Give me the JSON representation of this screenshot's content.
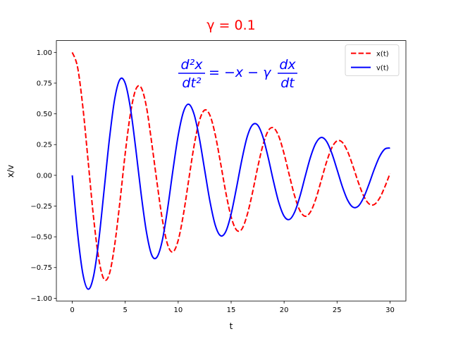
{
  "chart_data": {
    "type": "line",
    "title": "γ = 0.1",
    "title_color": "#ff0000",
    "annotation": {
      "fraction1": {
        "num": "d²x",
        "den": "dt²"
      },
      "middle": "= −x − γ",
      "fraction2": {
        "num": "dx",
        "den": "dt"
      },
      "color": "#0000ff"
    },
    "x_label": "t",
    "y_label": "x/v",
    "legend": "upper right",
    "x": [
      0,
      0.5,
      1,
      1.5,
      2,
      2.5,
      3,
      3.5,
      4,
      4.5,
      5,
      5.5,
      6,
      6.5,
      7,
      7.5,
      8,
      8.5,
      9,
      9.5,
      10,
      10.5,
      11,
      11.5,
      12,
      12.5,
      13,
      13.5,
      14,
      14.5,
      15,
      15.5,
      16,
      16.5,
      17,
      17.5,
      18,
      18.5,
      19,
      19.5,
      20,
      20.5,
      21,
      21.5,
      22,
      22.5,
      23,
      23.5,
      24,
      24.5,
      25,
      25.5,
      26,
      26.5,
      27,
      27.5,
      28,
      28.5,
      29,
      29.5,
      30
    ],
    "series": [
      {
        "name": "x(t)",
        "color": "#ff0000",
        "dash": "dashed",
        "values": [
          1,
          0.88,
          0.555,
          0.114,
          -0.334,
          -0.678,
          -0.845,
          -0.803,
          -0.569,
          -0.215,
          0.179,
          0.506,
          0.699,
          0.714,
          0.558,
          0.264,
          -0.058,
          -0.357,
          -0.563,
          -0.623,
          -0.529,
          -0.315,
          -0.034,
          0.24,
          0.443,
          0.531,
          0.488,
          0.33,
          0.101,
          -0.141,
          -0.338,
          -0.444,
          -0.439,
          -0.326,
          -0.147,
          0.062,
          0.245,
          0.362,
          0.386,
          0.317,
          0.175,
          -0.001,
          -0.169,
          -0.288,
          -0.333,
          -0.296,
          -0.191,
          -0.043,
          0.106,
          0.223,
          0.28,
          0.268,
          0.193,
          0.075,
          -0.055,
          -0.165,
          -0.231,
          -0.238,
          -0.188,
          -0.096,
          0.015
        ]
      },
      {
        "name": "v(t)",
        "color": "#0000ff",
        "dash": "solid",
        "values": [
          0,
          -0.468,
          -0.801,
          -0.926,
          -0.824,
          -0.532,
          -0.125,
          0.289,
          0.618,
          0.78,
          0.749,
          0.542,
          0.213,
          -0.15,
          -0.459,
          -0.648,
          -0.665,
          -0.53,
          -0.272,
          0.039,
          0.324,
          0.517,
          0.578,
          0.497,
          0.302,
          0.044,
          -0.212,
          -0.405,
          -0.491,
          -0.456,
          -0.314,
          -0.104,
          0.121,
          0.309,
          0.409,
          0.409,
          0.312,
          0.144,
          -0.049,
          -0.221,
          -0.332,
          -0.359,
          -0.298,
          -0.169,
          -0.006,
          0.15,
          0.262,
          0.308,
          0.277,
          0.181,
          0.047,
          -0.092,
          -0.202,
          -0.259,
          -0.251,
          -0.183,
          -0.075,
          0.046,
          0.15,
          0.213,
          0.222
        ]
      }
    ],
    "xlim": [
      -1.5,
      31.5
    ],
    "ylim": [
      -1.022,
      1.096
    ],
    "xticks": [
      0,
      5,
      10,
      15,
      20,
      25,
      30
    ],
    "yticks": [
      {
        "value": -1,
        "label": "−1.00"
      },
      {
        "value": -0.75,
        "label": "−0.75"
      },
      {
        "value": -0.5,
        "label": "−0.50"
      },
      {
        "value": -0.25,
        "label": "−0.25"
      },
      {
        "value": 0,
        "label": "0.00"
      },
      {
        "value": 0.25,
        "label": "0.25"
      },
      {
        "value": 0.5,
        "label": "0.50"
      },
      {
        "value": 0.75,
        "label": "0.75"
      },
      {
        "value": 1,
        "label": "1.00"
      }
    ],
    "grid": false
  }
}
